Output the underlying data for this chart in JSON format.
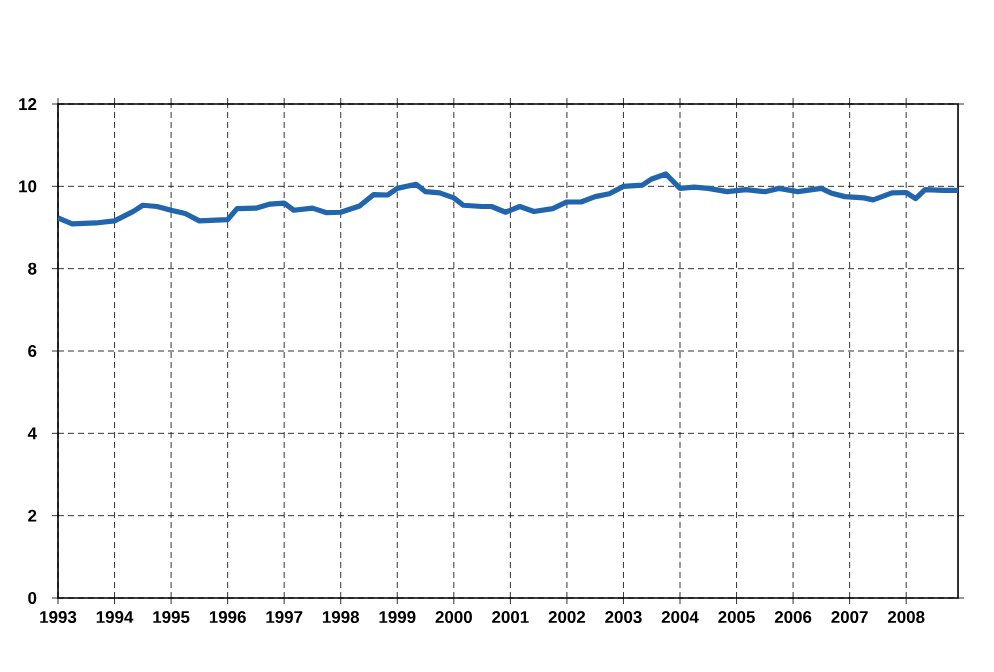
{
  "chart_data": {
    "type": "line",
    "x": [
      "1993-01",
      "1993-04",
      "1993-09",
      "1994-01",
      "1994-05",
      "1994-07",
      "1994-10",
      "1995-01",
      "1995-04",
      "1995-07",
      "1996-01",
      "1996-03",
      "1996-07",
      "1996-10",
      "1997-01",
      "1997-03",
      "1997-07",
      "1997-10",
      "1998-01",
      "1998-05",
      "1998-08",
      "1998-11",
      "1999-01",
      "1999-05",
      "1999-07",
      "1999-10",
      "2000-01",
      "2000-03",
      "2000-07",
      "2000-09",
      "2000-12",
      "2001-03",
      "2001-06",
      "2001-10",
      "2002-01",
      "2002-04",
      "2002-07",
      "2002-10",
      "2003-01",
      "2003-05",
      "2003-07",
      "2003-10",
      "2004-01",
      "2004-04",
      "2004-07",
      "2004-11",
      "2005-03",
      "2005-07",
      "2005-10",
      "2006-02",
      "2006-07",
      "2006-09",
      "2006-12",
      "2007-04",
      "2007-06",
      "2007-10",
      "2008-01",
      "2008-03",
      "2008-05",
      "2008-09",
      "2008-12"
    ],
    "series": [
      {
        "color": "#2166ac",
        "values": [
          9.23,
          9.09,
          9.11,
          9.16,
          9.39,
          9.54,
          9.51,
          9.42,
          9.34,
          9.16,
          9.19,
          9.46,
          9.47,
          9.57,
          9.59,
          9.42,
          9.47,
          9.36,
          9.37,
          9.52,
          9.8,
          9.79,
          9.95,
          10.05,
          9.87,
          9.84,
          9.72,
          9.54,
          9.51,
          9.51,
          9.37,
          9.51,
          9.39,
          9.46,
          9.62,
          9.62,
          9.75,
          9.82,
          10.0,
          10.03,
          10.18,
          10.3,
          9.95,
          9.98,
          9.95,
          9.87,
          9.92,
          9.87,
          9.95,
          9.87,
          9.95,
          9.84,
          9.75,
          9.72,
          9.67,
          9.84,
          9.85,
          9.7,
          9.92,
          9.9,
          9.9
        ]
      }
    ],
    "xlim": [
      "1993-01",
      "2008-12"
    ],
    "xticks": [
      {
        "value": "1993-01",
        "label": "1993"
      },
      {
        "value": "1994-01",
        "label": "1994"
      },
      {
        "value": "1995-01",
        "label": "1995"
      },
      {
        "value": "1996-01",
        "label": "1996"
      },
      {
        "value": "1997-01",
        "label": "1997"
      },
      {
        "value": "1998-01",
        "label": "1998"
      },
      {
        "value": "1999-01",
        "label": "1999"
      },
      {
        "value": "2000-01",
        "label": "2000"
      },
      {
        "value": "2001-01",
        "label": "2001"
      },
      {
        "value": "2002-01",
        "label": "2002"
      },
      {
        "value": "2003-01",
        "label": "2003"
      },
      {
        "value": "2004-01",
        "label": "2004"
      },
      {
        "value": "2005-01",
        "label": "2005"
      },
      {
        "value": "2006-01",
        "label": "2006"
      },
      {
        "value": "2007-01",
        "label": "2007"
      },
      {
        "value": "2008-01",
        "label": "2008"
      }
    ],
    "ylim": [
      0,
      12
    ],
    "yticks": [
      0,
      2,
      4,
      6,
      8,
      10,
      12
    ],
    "grid": true,
    "line_style": "solid",
    "marker": "none",
    "legend": false
  }
}
